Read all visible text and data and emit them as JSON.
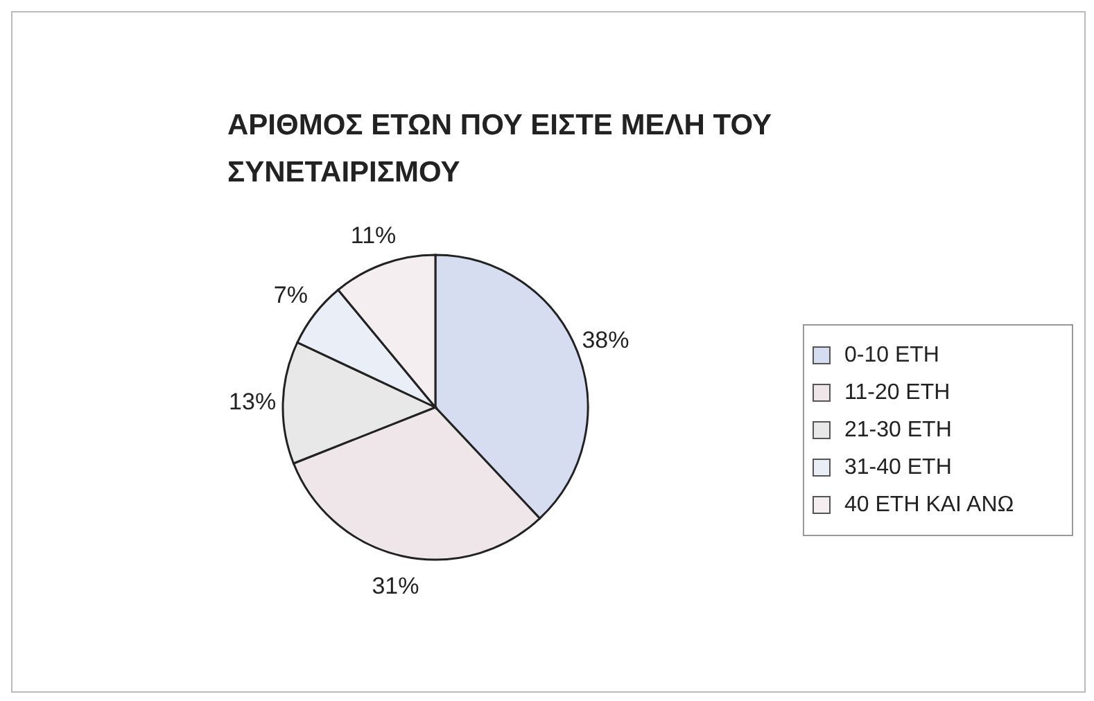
{
  "chart_data": {
    "type": "pie",
    "title": "ΑΡΙΘΜΟΣ ΕΤΩΝ ΠΟΥ ΕΙΣΤΕ ΜΕΛΗ ΤΟΥ ΣΥΝΕΤΑΙΡΙΣΜΟΥ",
    "categories": [
      "0-10 ΕΤΗ",
      "11-20 ΕΤΗ",
      "21-30 ΕΤΗ",
      "31-40 ΕΤΗ",
      "40 ΕΤΗ ΚΑΙ ΑΝΩ"
    ],
    "values": [
      38,
      31,
      13,
      7,
      11
    ],
    "colors": [
      "#d6ddf0",
      "#efe6ea",
      "#e8e8e8",
      "#e9eef7",
      "#f4eef0"
    ],
    "value_labels": [
      "38%",
      "31%",
      "13%",
      "7%",
      "11%"
    ],
    "legend": "right"
  }
}
